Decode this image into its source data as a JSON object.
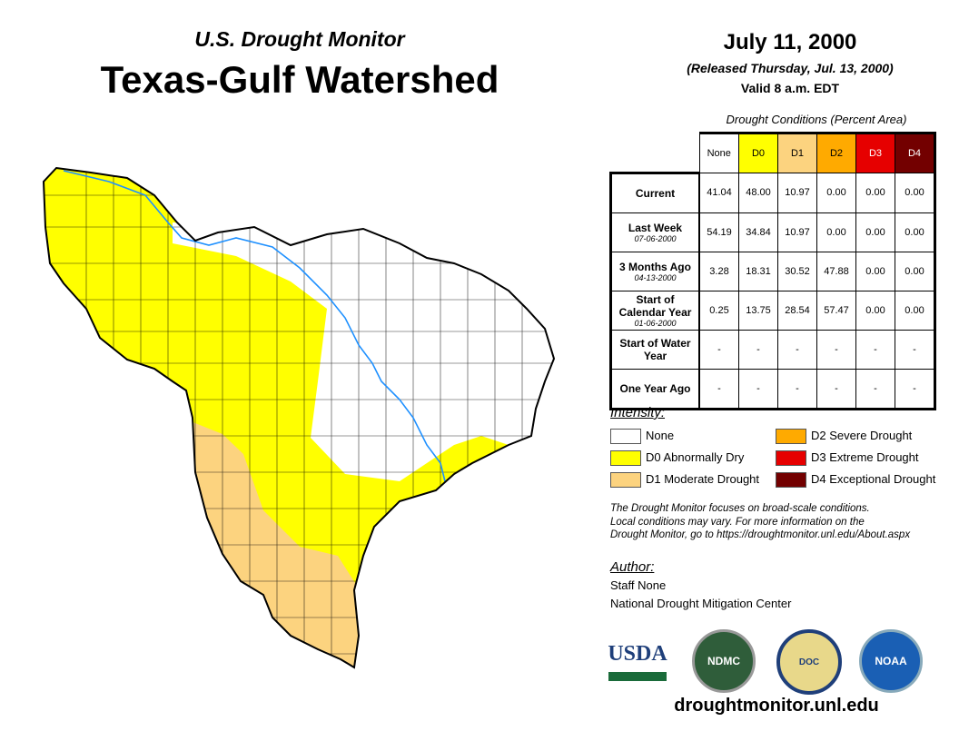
{
  "header": {
    "subtitle": "U.S. Drought Monitor",
    "title": "Texas-Gulf Watershed",
    "date": "July 11, 2000",
    "released": "(Released Thursday, Jul. 13, 2000)",
    "valid": "Valid 8 a.m. EDT"
  },
  "table": {
    "caption": "Drought Conditions (Percent Area)",
    "columns": [
      {
        "label": "None",
        "color": "#ffffff",
        "text": "#000"
      },
      {
        "label": "D0",
        "color": "#ffff00",
        "text": "#000"
      },
      {
        "label": "D1",
        "color": "#fcd37f",
        "text": "#000"
      },
      {
        "label": "D2",
        "color": "#ffaa00",
        "text": "#000"
      },
      {
        "label": "D3",
        "color": "#e60000",
        "text": "#fff"
      },
      {
        "label": "D4",
        "color": "#730000",
        "text": "#fff"
      }
    ],
    "rows": [
      {
        "label": "Current",
        "date": "",
        "values": [
          "41.04",
          "48.00",
          "10.97",
          "0.00",
          "0.00",
          "0.00"
        ]
      },
      {
        "label": "Last Week",
        "date": "07-06-2000",
        "values": [
          "54.19",
          "34.84",
          "10.97",
          "0.00",
          "0.00",
          "0.00"
        ]
      },
      {
        "label": "3 Months Ago",
        "date": "04-13-2000",
        "values": [
          "3.28",
          "18.31",
          "30.52",
          "47.88",
          "0.00",
          "0.00"
        ]
      },
      {
        "label": "Start of Calendar Year",
        "date": "01-06-2000",
        "values": [
          "0.25",
          "13.75",
          "28.54",
          "57.47",
          "0.00",
          "0.00"
        ]
      },
      {
        "label": "Start of Water Year",
        "date": "",
        "values": [
          "-",
          "-",
          "-",
          "-",
          "-",
          "-"
        ]
      },
      {
        "label": "One Year Ago",
        "date": "",
        "values": [
          "-",
          "-",
          "-",
          "-",
          "-",
          "-"
        ]
      }
    ]
  },
  "legend": {
    "title": "Intensity:",
    "items": [
      {
        "label": "None",
        "color": "#ffffff"
      },
      {
        "label": "D0 Abnormally Dry",
        "color": "#ffff00"
      },
      {
        "label": "D1 Moderate Drought",
        "color": "#fcd37f"
      },
      {
        "label": "D2 Severe Drought",
        "color": "#ffaa00"
      },
      {
        "label": "D3 Extreme Drought",
        "color": "#e60000"
      },
      {
        "label": "D4 Exceptional Drought",
        "color": "#730000"
      }
    ]
  },
  "note": [
    "The Drought Monitor focuses on broad-scale conditions.",
    "Local conditions may vary. For more information on the",
    "Drought Monitor, go to https://droughtmonitor.unl.edu/About.aspx"
  ],
  "author": {
    "title": "Author:",
    "name": "Staff None",
    "org": "National Drought Mitigation Center"
  },
  "logos": [
    "USDA",
    "NDMC",
    "DOC",
    "NOAA"
  ],
  "footer": {
    "url": "droughtmonitor.unl.edu"
  }
}
